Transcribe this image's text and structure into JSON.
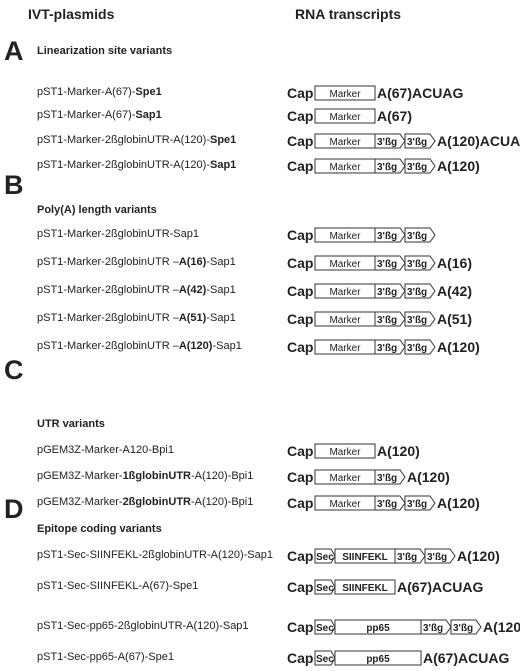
{
  "headers": {
    "left": "IVT-plasmids",
    "right": "RNA transcripts"
  },
  "sections": [
    {
      "letter": "A",
      "title": "Linearization site variants",
      "rows": [
        {
          "plasmid": [
            {
              "t": "pST1-Marker-A(67)-"
            },
            {
              "t": "Spe1",
              "b": true
            }
          ],
          "transcript": {
            "cap": "Cap",
            "seg": [
              {
                "k": "box",
                "label": "Marker",
                "w": 60
              }
            ],
            "tail": "A(67)ACUAG"
          }
        },
        {
          "plasmid": [
            {
              "t": "pST1-Marker-A(67)-"
            },
            {
              "t": "Sap1",
              "b": true
            }
          ],
          "transcript": {
            "cap": "Cap",
            "seg": [
              {
                "k": "box",
                "label": "Marker",
                "w": 60
              }
            ],
            "tail": "A(67)"
          }
        },
        {
          "plasmid": [
            {
              "t": "pST1-Marker-2ßglobinUTR-A(120)-"
            },
            {
              "t": "Spe1",
              "b": true
            }
          ],
          "transcript": {
            "cap": "Cap",
            "seg": [
              {
                "k": "box",
                "label": "Marker",
                "w": 60
              },
              {
                "k": "utr",
                "label": "3'ßg"
              },
              {
                "k": "utr",
                "label": "3'ßg"
              }
            ],
            "tail": "A(120)ACUAG"
          }
        },
        {
          "plasmid": [
            {
              "t": "pST1-Marker-2ßglobinUTR-A(120)-"
            },
            {
              "t": "Sap1",
              "b": true
            }
          ],
          "transcript": {
            "cap": "Cap",
            "seg": [
              {
                "k": "box",
                "label": "Marker",
                "w": 60
              },
              {
                "k": "utr",
                "label": "3'ßg"
              },
              {
                "k": "utr",
                "label": "3'ßg"
              }
            ],
            "tail": "A(120)"
          }
        }
      ]
    },
    {
      "letter": "B",
      "title": "Poly(A) length variants",
      "rows": [
        {
          "plasmid": [
            {
              "t": "pST1-Marker-2ßglobinUTR-Sap1"
            }
          ],
          "transcript": {
            "cap": "Cap",
            "seg": [
              {
                "k": "box",
                "label": "Marker",
                "w": 60
              },
              {
                "k": "utr",
                "label": "3'ßg"
              },
              {
                "k": "utr",
                "label": "3'ßg"
              }
            ],
            "tail": ""
          }
        },
        {
          "plasmid": [
            {
              "t": "pST1-Marker-2ßglobinUTR –"
            },
            {
              "t": "A(16)",
              "b": true
            },
            {
              "t": "-Sap1"
            }
          ],
          "transcript": {
            "cap": "Cap",
            "seg": [
              {
                "k": "box",
                "label": "Marker",
                "w": 60
              },
              {
                "k": "utr",
                "label": "3'ßg"
              },
              {
                "k": "utr",
                "label": "3'ßg"
              }
            ],
            "tail": "A(16)"
          }
        },
        {
          "plasmid": [
            {
              "t": "pST1-Marker-2ßglobinUTR –"
            },
            {
              "t": "A(42)",
              "b": true
            },
            {
              "t": "-Sap1"
            }
          ],
          "transcript": {
            "cap": "Cap",
            "seg": [
              {
                "k": "box",
                "label": "Marker",
                "w": 60
              },
              {
                "k": "utr",
                "label": "3'ßg"
              },
              {
                "k": "utr",
                "label": "3'ßg"
              }
            ],
            "tail": "A(42)"
          }
        },
        {
          "plasmid": [
            {
              "t": "pST1-Marker-2ßglobinUTR –"
            },
            {
              "t": "A(51)",
              "b": true
            },
            {
              "t": "-Sap1"
            }
          ],
          "transcript": {
            "cap": "Cap",
            "seg": [
              {
                "k": "box",
                "label": "Marker",
                "w": 60
              },
              {
                "k": "utr",
                "label": "3'ßg"
              },
              {
                "k": "utr",
                "label": "3'ßg"
              }
            ],
            "tail": "A(51)"
          }
        },
        {
          "plasmid": [
            {
              "t": "pST1-Marker-2ßglobinUTR –"
            },
            {
              "t": "A(120)",
              "b": true
            },
            {
              "t": "-Sap1"
            }
          ],
          "transcript": {
            "cap": "Cap",
            "seg": [
              {
                "k": "box",
                "label": "Marker",
                "w": 60
              },
              {
                "k": "utr",
                "label": "3'ßg"
              },
              {
                "k": "utr",
                "label": "3'ßg"
              }
            ],
            "tail": "A(120)"
          }
        }
      ]
    },
    {
      "letter": "C",
      "title": "UTR variants",
      "rows": [
        {
          "plasmid": [
            {
              "t": "pGEM3Z-Marker-A120-Bpi1"
            }
          ],
          "transcript": {
            "cap": "Cap",
            "seg": [
              {
                "k": "box",
                "label": "Marker",
                "w": 60
              }
            ],
            "tail": "A(120)"
          }
        },
        {
          "plasmid": [
            {
              "t": "pGEM3Z-Marker-"
            },
            {
              "t": "1ßglobinUTR",
              "b": true
            },
            {
              "t": "-A(120)-Bpi1"
            }
          ],
          "transcript": {
            "cap": "Cap",
            "seg": [
              {
                "k": "box",
                "label": "Marker",
                "w": 60
              },
              {
                "k": "utr",
                "label": "3'ßg"
              }
            ],
            "tail": "A(120)"
          }
        },
        {
          "plasmid": [
            {
              "t": "pGEM3Z-Marker-"
            },
            {
              "t": "2ßglobinUTR",
              "b": true
            },
            {
              "t": "-A(120)-Bpi1"
            }
          ],
          "transcript": {
            "cap": "Cap",
            "seg": [
              {
                "k": "box",
                "label": "Marker",
                "w": 60
              },
              {
                "k": "utr",
                "label": "3'ßg"
              },
              {
                "k": "utr",
                "label": "3'ßg"
              }
            ],
            "tail": "A(120)"
          }
        }
      ]
    },
    {
      "letter": "D",
      "title": "Epitope coding variants",
      "rows": [
        {
          "plasmid": [
            {
              "t": "pST1-Sec-SIINFEKL-2ßglobinUTR-A(120)-Sap1"
            }
          ],
          "transcript": {
            "cap": "Cap",
            "seg": [
              {
                "k": "sec",
                "label": "Sec"
              },
              {
                "k": "box",
                "label": "SIINFEKL",
                "w": 60,
                "b": true
              },
              {
                "k": "utr",
                "label": "3'ßg"
              },
              {
                "k": "utr",
                "label": "3'ßg"
              }
            ],
            "tail": "A(120)"
          }
        },
        {
          "plasmid": [
            {
              "t": "pST1-Sec-SIINFEKL-A(67)-Spe1"
            }
          ],
          "transcript": {
            "cap": "Cap",
            "seg": [
              {
                "k": "sec",
                "label": "Sec"
              },
              {
                "k": "box",
                "label": "SIINFEKL",
                "w": 60,
                "b": true
              }
            ],
            "tail": "A(67)ACUAG"
          }
        },
        {
          "plasmid": [
            {
              "t": "pST1-Sec-pp65-2ßglobinUTR-A(120)-Sap1"
            }
          ],
          "transcript": {
            "cap": "Cap",
            "seg": [
              {
                "k": "sec",
                "label": "Sec"
              },
              {
                "k": "box",
                "label": "pp65",
                "w": 86,
                "b": true
              },
              {
                "k": "utr",
                "label": "3'ßg"
              },
              {
                "k": "utr",
                "label": "3'ßg"
              }
            ],
            "tail": "A(120)"
          }
        },
        {
          "plasmid": [
            {
              "t": "pST1-Sec-pp65-A(67)-Spe1"
            }
          ],
          "transcript": {
            "cap": "Cap",
            "seg": [
              {
                "k": "sec",
                "label": "Sec"
              },
              {
                "k": "box",
                "label": "pp65",
                "w": 86,
                "b": true
              }
            ],
            "tail": "A(67)ACUAG"
          }
        }
      ]
    }
  ]
}
